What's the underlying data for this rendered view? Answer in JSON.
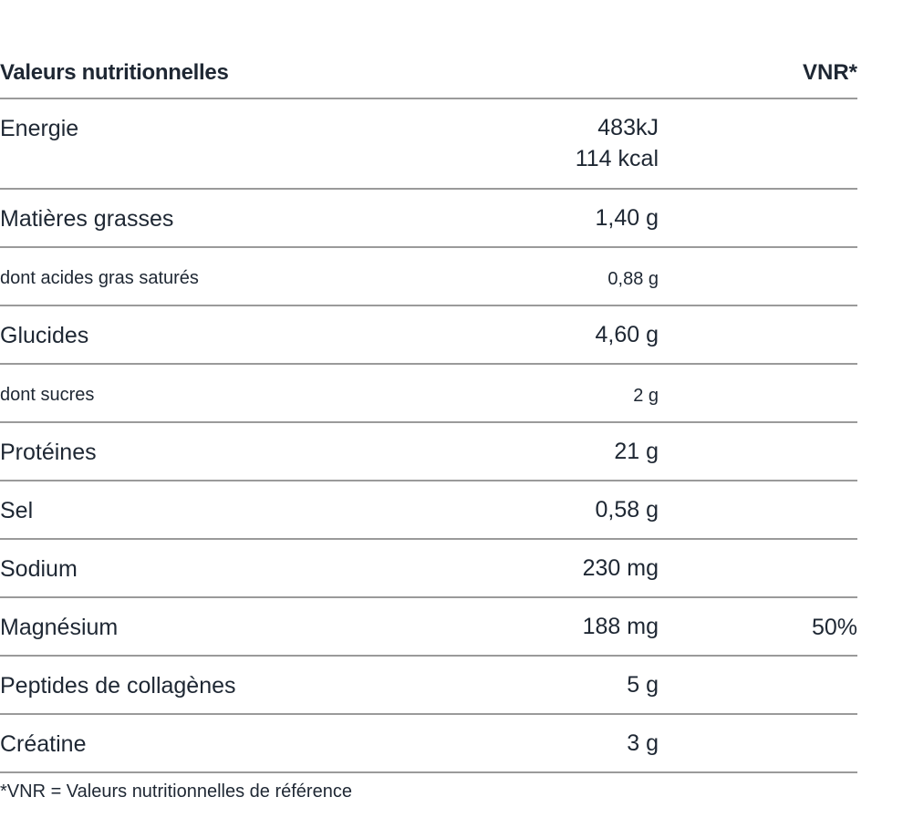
{
  "table": {
    "header": {
      "title": "Valeurs nutritionnelles",
      "vnr": "VNR*"
    },
    "rows": [
      {
        "name": "Energie",
        "value": "483kJ",
        "value2": "114 kcal",
        "vnr": ""
      },
      {
        "name": "Matières grasses",
        "value": "1,40 g",
        "vnr": ""
      },
      {
        "name": "dont acides gras saturés",
        "value": "0,88 g",
        "vnr": "",
        "sub": true
      },
      {
        "name": "Glucides",
        "value": "4,60 g",
        "vnr": ""
      },
      {
        "name": "dont sucres",
        "value": "2 g",
        "vnr": "",
        "sub": true
      },
      {
        "name": "Protéines",
        "value": "21 g",
        "vnr": ""
      },
      {
        "name": "Sel",
        "value": "0,58 g",
        "vnr": ""
      },
      {
        "name": "Sodium",
        "value": "230 mg",
        "vnr": ""
      },
      {
        "name": "Magnésium",
        "value": "188 mg",
        "vnr": "50%"
      },
      {
        "name": "Peptides de collagènes",
        "value": "5 g",
        "vnr": ""
      },
      {
        "name": "Créatine",
        "value": "3 g",
        "vnr": ""
      }
    ]
  },
  "footnote": "*VNR = Valeurs nutritionnelles de référence"
}
